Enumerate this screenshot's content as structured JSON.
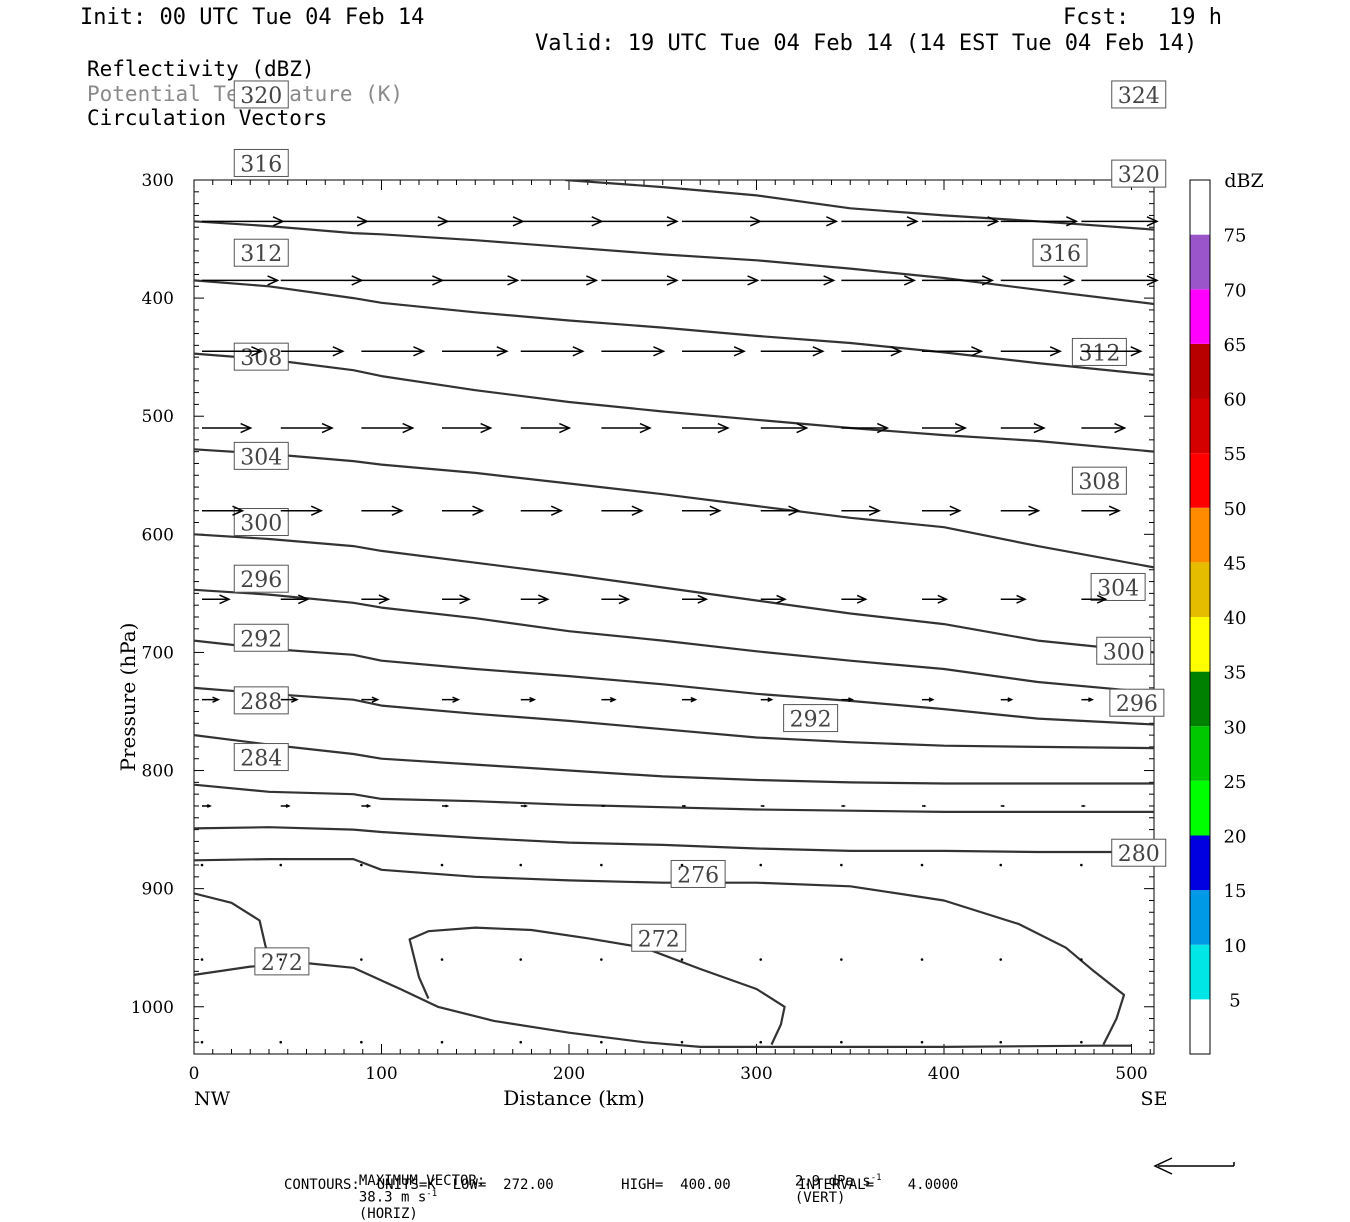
{
  "header": {
    "init": "Init: 00 UTC Tue 04 Feb 14",
    "fcst": "Fcst:   19 h",
    "valid": "Valid: 19 UTC Tue 04 Feb 14 (14 EST Tue 04 Feb 14)"
  },
  "fields": {
    "reflectivity": "Reflectivity (dBZ)",
    "theta": "Potential Temperature (K)",
    "vectors": "Circulation Vectors"
  },
  "footer": {
    "max_vector_prefix": "MAXIMUM VECTOR:",
    "horiz_value": "38.3 m s",
    "horiz_label": "(HORIZ)",
    "vert_value": "2.9 dPa s",
    "vert_label": "(VERT)",
    "exponent": "-1",
    "contours": "CONTOURS:  UNITS=K  LOW=  272.00        HIGH=  400.00        INTERVAL=    4.0000"
  },
  "chart_data": {
    "type": "line",
    "xlabel": "Distance (km)",
    "ylabel": "Pressure (hPa)",
    "x_ticks": [
      0,
      100,
      200,
      300,
      400,
      500
    ],
    "y_ticks": [
      300,
      400,
      500,
      600,
      700,
      800,
      900,
      1000
    ],
    "xlim": [
      0,
      512
    ],
    "ylim": [
      300,
      1040
    ],
    "y_inverted": true,
    "x_end_labels": {
      "left": "NW",
      "right": "SE"
    },
    "colorbar": {
      "title": "dBZ",
      "labels": [
        "5",
        "10",
        "15",
        "20",
        "25",
        "30",
        "35",
        "40",
        "45",
        "50",
        "55",
        "60",
        "65",
        "70",
        "75"
      ],
      "colors": [
        "#ffffff",
        "#00e5e5",
        "#0099e5",
        "#0000e0",
        "#00ff00",
        "#00c800",
        "#008000",
        "#ffff00",
        "#e5bc00",
        "#ff8c00",
        "#ff0000",
        "#d40000",
        "#b80000",
        "#ff00ff",
        "#9955c9",
        "#ffffff"
      ]
    },
    "theta_series": [
      {
        "name": "272 (west)",
        "label": "272",
        "label_at": [
          33,
          962
        ],
        "points": [
          [
            0,
            973
          ],
          [
            30,
            966
          ],
          [
            60,
            963
          ],
          [
            85,
            967
          ],
          [
            110,
            985
          ],
          [
            130,
            1000
          ],
          [
            160,
            1012
          ],
          [
            200,
            1022
          ],
          [
            240,
            1030
          ],
          [
            270,
            1034
          ],
          [
            320,
            1034
          ],
          [
            400,
            1034
          ],
          [
            480,
            1033
          ],
          [
            500,
            1033
          ]
        ]
      },
      {
        "name": "272 (west cap)",
        "points": [
          [
            0,
            904
          ],
          [
            20,
            912
          ],
          [
            35,
            927
          ],
          [
            38,
            948
          ],
          [
            40,
            958
          ]
        ]
      },
      {
        "name": "272 (center)",
        "label": "272",
        "label_at": [
          234,
          942
        ],
        "points": [
          [
            125,
            993
          ],
          [
            120,
            975
          ],
          [
            115,
            943
          ],
          [
            125,
            936
          ],
          [
            150,
            933
          ],
          [
            180,
            935
          ],
          [
            210,
            942
          ],
          [
            240,
            950
          ],
          [
            270,
            968
          ],
          [
            300,
            985
          ],
          [
            315,
            1000
          ],
          [
            313,
            1015
          ],
          [
            308,
            1032
          ]
        ]
      },
      {
        "name": "276",
        "label": "276",
        "label_at": [
          255,
          888
        ],
        "points": [
          [
            0,
            876
          ],
          [
            40,
            875
          ],
          [
            85,
            875
          ],
          [
            100,
            884
          ],
          [
            150,
            890
          ],
          [
            200,
            893
          ],
          [
            250,
            895
          ],
          [
            300,
            895
          ],
          [
            350,
            898
          ],
          [
            400,
            910
          ],
          [
            440,
            930
          ],
          [
            465,
            950
          ],
          [
            480,
            970
          ],
          [
            496,
            990
          ],
          [
            492,
            1010
          ],
          [
            485,
            1032
          ]
        ]
      },
      {
        "name": "280",
        "label": "280",
        "label_at": [
          490,
          870
        ],
        "points": [
          [
            0,
            849
          ],
          [
            40,
            848
          ],
          [
            85,
            850
          ],
          [
            100,
            852
          ],
          [
            150,
            857
          ],
          [
            200,
            861
          ],
          [
            250,
            863
          ],
          [
            300,
            866
          ],
          [
            350,
            868
          ],
          [
            400,
            868
          ],
          [
            450,
            869
          ],
          [
            512,
            869
          ]
        ]
      },
      {
        "name": "284",
        "label": "284",
        "label_at": [
          22,
          789
        ],
        "points": [
          [
            0,
            812
          ],
          [
            40,
            818
          ],
          [
            85,
            820
          ],
          [
            100,
            824
          ],
          [
            150,
            826
          ],
          [
            200,
            829
          ],
          [
            250,
            831
          ],
          [
            300,
            833
          ],
          [
            350,
            834
          ],
          [
            400,
            835
          ],
          [
            450,
            835
          ],
          [
            512,
            835
          ]
        ]
      },
      {
        "name": "288",
        "label": "288",
        "label_at": [
          22,
          741
        ],
        "points": [
          [
            0,
            770
          ],
          [
            40,
            778
          ],
          [
            85,
            786
          ],
          [
            100,
            790
          ],
          [
            150,
            795
          ],
          [
            200,
            800
          ],
          [
            250,
            805
          ],
          [
            300,
            808
          ],
          [
            350,
            810
          ],
          [
            400,
            811
          ],
          [
            450,
            811
          ],
          [
            512,
            811
          ]
        ]
      },
      {
        "name": "292",
        "label": "292",
        "label_at": [
          22,
          688
        ],
        "points": [
          [
            0,
            730
          ],
          [
            40,
            735
          ],
          [
            85,
            740
          ],
          [
            100,
            745
          ],
          [
            150,
            752
          ],
          [
            200,
            758
          ],
          [
            250,
            765
          ],
          [
            300,
            772
          ],
          [
            350,
            776
          ],
          [
            400,
            779
          ],
          [
            450,
            780
          ],
          [
            512,
            781
          ]
        ]
      },
      {
        "name": "296",
        "label": "296",
        "label_at": [
          22,
          638
        ],
        "points": [
          [
            0,
            690
          ],
          [
            40,
            697
          ],
          [
            85,
            702
          ],
          [
            100,
            707
          ],
          [
            150,
            714
          ],
          [
            200,
            720
          ],
          [
            250,
            727
          ],
          [
            300,
            735
          ],
          [
            350,
            741
          ],
          [
            400,
            748
          ],
          [
            450,
            756
          ],
          [
            512,
            761
          ]
        ]
      },
      {
        "name": "300",
        "label": "300",
        "label_at": [
          22,
          590
        ],
        "points": [
          [
            0,
            647
          ],
          [
            40,
            651
          ],
          [
            85,
            658
          ],
          [
            100,
            662
          ],
          [
            150,
            671
          ],
          [
            200,
            682
          ],
          [
            250,
            690
          ],
          [
            300,
            699
          ],
          [
            350,
            707
          ],
          [
            400,
            714
          ],
          [
            450,
            725
          ],
          [
            512,
            734
          ]
        ]
      },
      {
        "name": "304",
        "label": "304",
        "label_at": [
          22,
          534
        ],
        "points": [
          [
            0,
            600
          ],
          [
            40,
            604
          ],
          [
            85,
            610
          ],
          [
            100,
            614
          ],
          [
            150,
            624
          ],
          [
            200,
            634
          ],
          [
            250,
            645
          ],
          [
            300,
            656
          ],
          [
            350,
            667
          ],
          [
            400,
            676
          ],
          [
            450,
            690
          ],
          [
            512,
            700
          ]
        ]
      },
      {
        "name": "308",
        "label": "308",
        "label_at": [
          22,
          450
        ],
        "points": [
          [
            0,
            528
          ],
          [
            40,
            532
          ],
          [
            85,
            538
          ],
          [
            100,
            541
          ],
          [
            150,
            548
          ],
          [
            200,
            557
          ],
          [
            250,
            566
          ],
          [
            300,
            576
          ],
          [
            350,
            586
          ],
          [
            400,
            594
          ],
          [
            450,
            610
          ],
          [
            512,
            628
          ]
        ]
      },
      {
        "name": "312",
        "label": "312",
        "label_at": [
          22,
          362
        ],
        "points": [
          [
            0,
            447
          ],
          [
            40,
            452
          ],
          [
            85,
            461
          ],
          [
            100,
            466
          ],
          [
            150,
            478
          ],
          [
            200,
            488
          ],
          [
            250,
            496
          ],
          [
            300,
            503
          ],
          [
            350,
            510
          ],
          [
            400,
            516
          ],
          [
            450,
            521
          ],
          [
            512,
            530
          ]
        ]
      },
      {
        "name": "316",
        "label": "316",
        "label_at": [
          22,
          286
        ],
        "points": [
          [
            0,
            385
          ],
          [
            40,
            390
          ],
          [
            85,
            400
          ],
          [
            100,
            404
          ],
          [
            150,
            412
          ],
          [
            200,
            419
          ],
          [
            250,
            425
          ],
          [
            300,
            432
          ],
          [
            350,
            438
          ],
          [
            400,
            446
          ],
          [
            450,
            455
          ],
          [
            512,
            465
          ]
        ]
      },
      {
        "name": "320",
        "label": "320",
        "label_at": [
          22,
          228
        ],
        "points": [
          [
            0,
            335
          ],
          [
            40,
            339
          ],
          [
            85,
            345
          ],
          [
            100,
            346
          ],
          [
            150,
            351
          ],
          [
            200,
            357
          ],
          [
            250,
            363
          ],
          [
            300,
            368
          ],
          [
            350,
            375
          ],
          [
            400,
            383
          ],
          [
            450,
            393
          ],
          [
            512,
            405
          ]
        ]
      },
      {
        "name": "324",
        "label": "324",
        "label_at": [
          490,
          228
        ],
        "points": [
          [
            198,
            300
          ],
          [
            250,
            306
          ],
          [
            300,
            313
          ],
          [
            350,
            324
          ],
          [
            400,
            330
          ],
          [
            450,
            335
          ],
          [
            512,
            342
          ]
        ]
      }
    ],
    "inline_labels": [
      {
        "label": "320",
        "at": [
          490,
          295
        ]
      },
      {
        "label": "316",
        "at": [
          448,
          362
        ]
      },
      {
        "label": "312",
        "at": [
          469,
          446
        ]
      },
      {
        "label": "308",
        "at": [
          469,
          555
        ]
      },
      {
        "label": "304",
        "at": [
          479,
          645
        ]
      },
      {
        "label": "300",
        "at": [
          482,
          699
        ]
      },
      {
        "label": "296",
        "at": [
          489,
          743
        ]
      },
      {
        "label": "292",
        "at": [
          315,
          756
        ]
      }
    ],
    "vector_columns_km": [
      0,
      42,
      85,
      128,
      170,
      213,
      256,
      298,
      341,
      384,
      426,
      469
    ],
    "vector_rows": [
      {
        "p": 335,
        "u": [
          30,
          32,
          32,
          30,
          30,
          28,
          29,
          28,
          28,
          28,
          28,
          28
        ]
      },
      {
        "p": 385,
        "u": [
          28,
          30,
          30,
          28,
          28,
          28,
          28,
          27,
          27,
          26,
          27,
          28
        ]
      },
      {
        "p": 445,
        "u": [
          22,
          23,
          23,
          24,
          23,
          23,
          23,
          23,
          22,
          22,
          22,
          22
        ]
      },
      {
        "p": 510,
        "u": [
          18,
          19,
          19,
          18,
          18,
          18,
          17,
          17,
          17,
          16,
          16,
          16
        ]
      },
      {
        "p": 580,
        "u": [
          15,
          15,
          15,
          15,
          15,
          15,
          14,
          14,
          14,
          14,
          14,
          14
        ]
      },
      {
        "p": 655,
        "u": [
          10,
          10,
          10,
          10,
          10,
          10,
          9,
          9,
          9,
          9,
          9,
          9
        ]
      },
      {
        "p": 740,
        "u": [
          6,
          6,
          6,
          6,
          5,
          5,
          5,
          4,
          4,
          4,
          4,
          4
        ]
      },
      {
        "p": 830,
        "u": [
          3,
          3,
          3,
          2,
          2,
          1,
          1,
          1,
          1,
          1,
          1,
          1
        ]
      },
      {
        "p": 880,
        "u": [
          0,
          0,
          0,
          0,
          0,
          0,
          0,
          0,
          0,
          0,
          0,
          0
        ]
      },
      {
        "p": 960,
        "u": [
          0,
          0,
          0,
          0,
          0,
          0,
          0,
          0,
          0,
          0,
          0,
          0
        ]
      },
      {
        "p": 1030,
        "u": [
          0,
          0,
          0,
          0,
          0,
          0,
          0,
          0,
          0,
          0,
          0,
          0
        ]
      }
    ],
    "reference_vector": "38.3 m s-1 (HORIZ) 2.9 dPa s-1 (VERT)"
  }
}
